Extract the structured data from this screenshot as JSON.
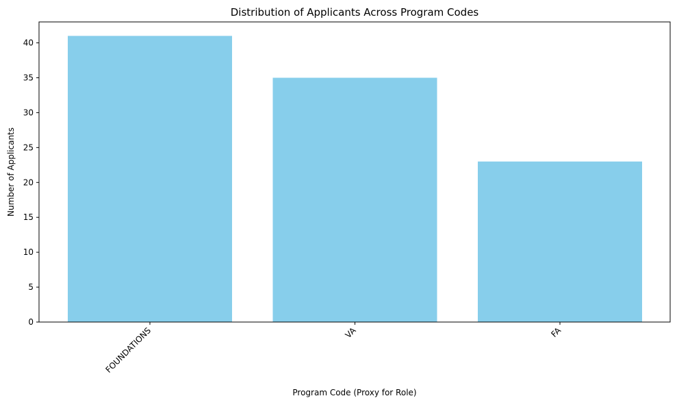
{
  "chart_data": {
    "type": "bar",
    "title": "Distribution of Applicants Across Program Codes",
    "xlabel": "Program Code (Proxy for Role)",
    "ylabel": "Number of Applicants",
    "categories": [
      "FOUNDATIONS",
      "VA",
      "FA"
    ],
    "values": [
      41,
      35,
      23
    ],
    "ylim": [
      0,
      43
    ],
    "yticks": [
      0,
      5,
      10,
      15,
      20,
      25,
      30,
      35,
      40
    ],
    "bar_color": "#87CEEB",
    "grid": false,
    "legend": "none"
  }
}
